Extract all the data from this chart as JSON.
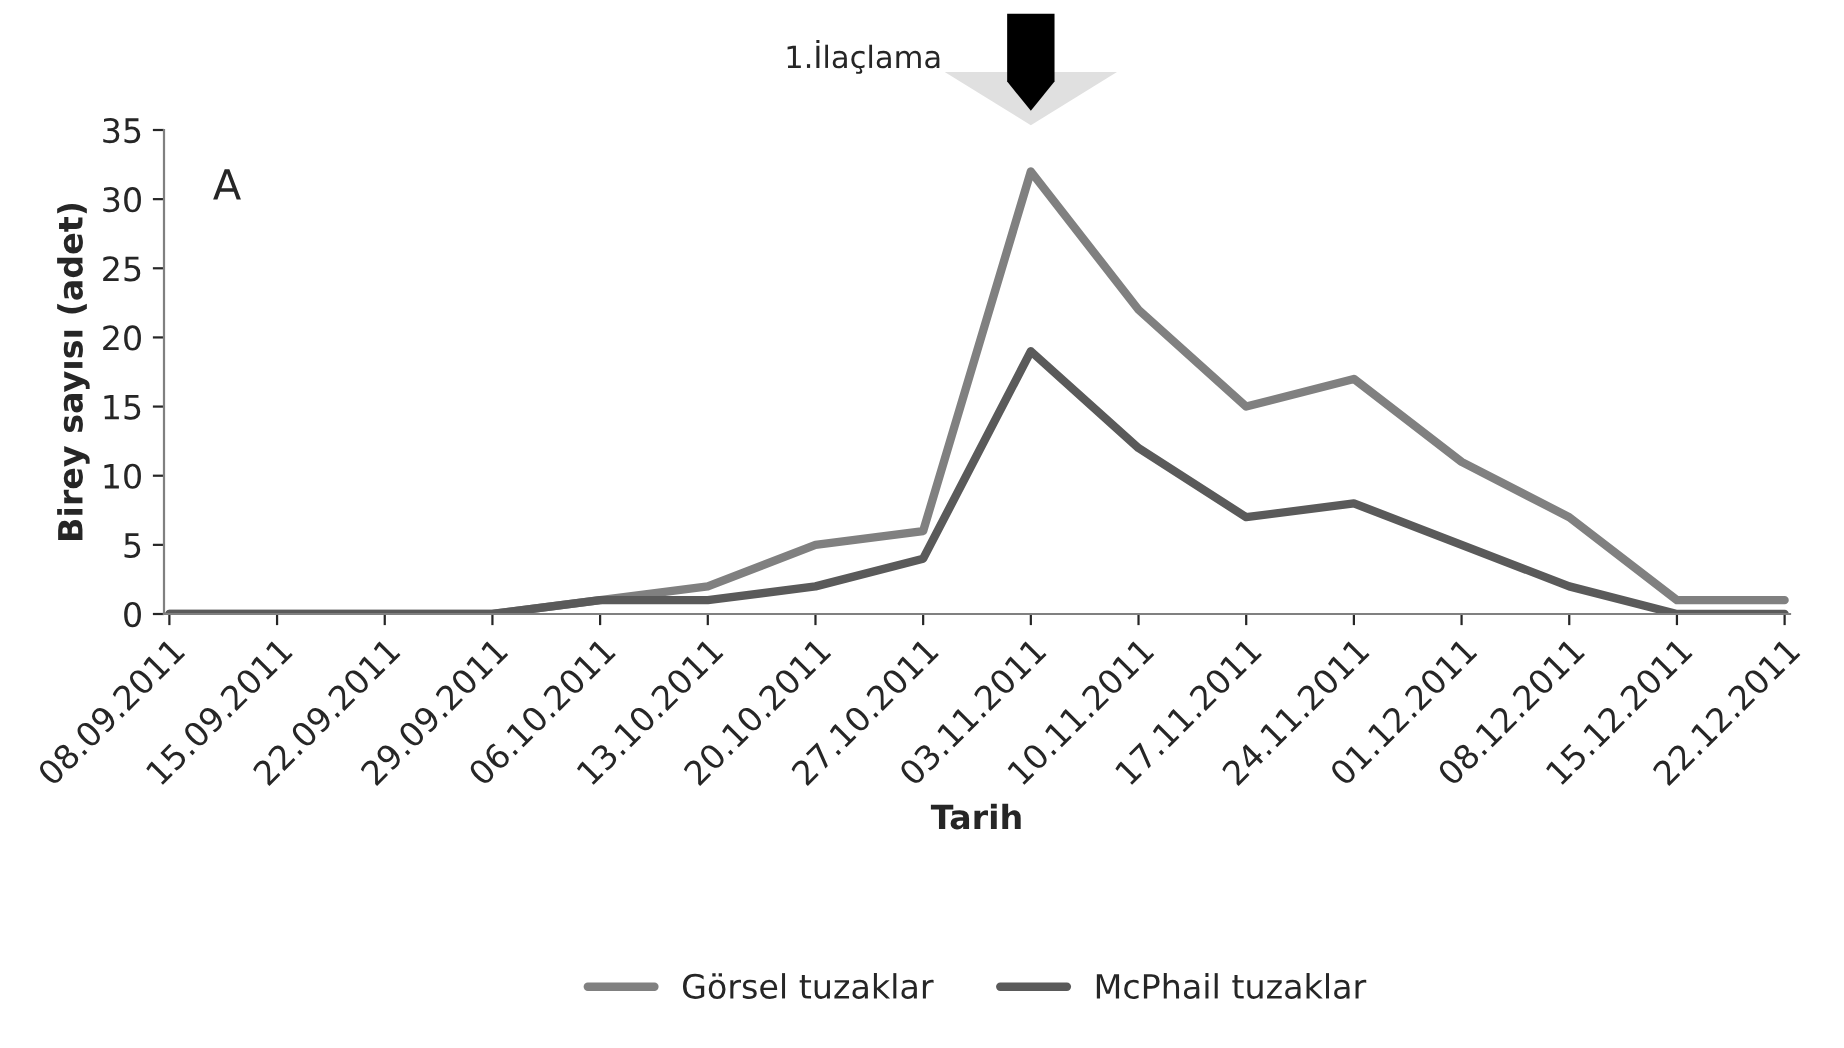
{
  "chart_data": {
    "type": "line",
    "xlabel": "Tarih",
    "ylabel": "Birey sayısı (adet)",
    "categories": [
      "08.09.2011",
      "15.09.2011",
      "22.09.2011",
      "29.09.2011",
      "06.10.2011",
      "13.10.2011",
      "20.10.2011",
      "27.10.2011",
      "03.11.2011",
      "10.11.2011",
      "17.11.2011",
      "24.11.2011",
      "01.12.2011",
      "08.12.2011",
      "15.12.2011",
      "22.12.2011"
    ],
    "series": [
      {
        "name": "Görsel tuzaklar",
        "color": "#808080",
        "values": [
          0,
          0,
          0,
          0,
          1,
          2,
          5,
          6,
          32,
          22,
          15,
          17,
          11,
          7,
          1,
          1
        ]
      },
      {
        "name": "McPhail tuzaklar",
        "color": "#5a5a5a",
        "values": [
          0,
          0,
          0,
          0,
          1,
          1,
          2,
          4,
          19,
          12,
          7,
          8,
          5,
          2,
          0,
          0
        ]
      }
    ],
    "ylim": [
      0,
      35
    ],
    "yticks": [
      0,
      5,
      10,
      15,
      20,
      25,
      30,
      35
    ],
    "annotations": [
      "A",
      "1.İlaçlama"
    ],
    "grid": false,
    "legend": "bottom",
    "marker": "none",
    "line_style": "solid"
  }
}
